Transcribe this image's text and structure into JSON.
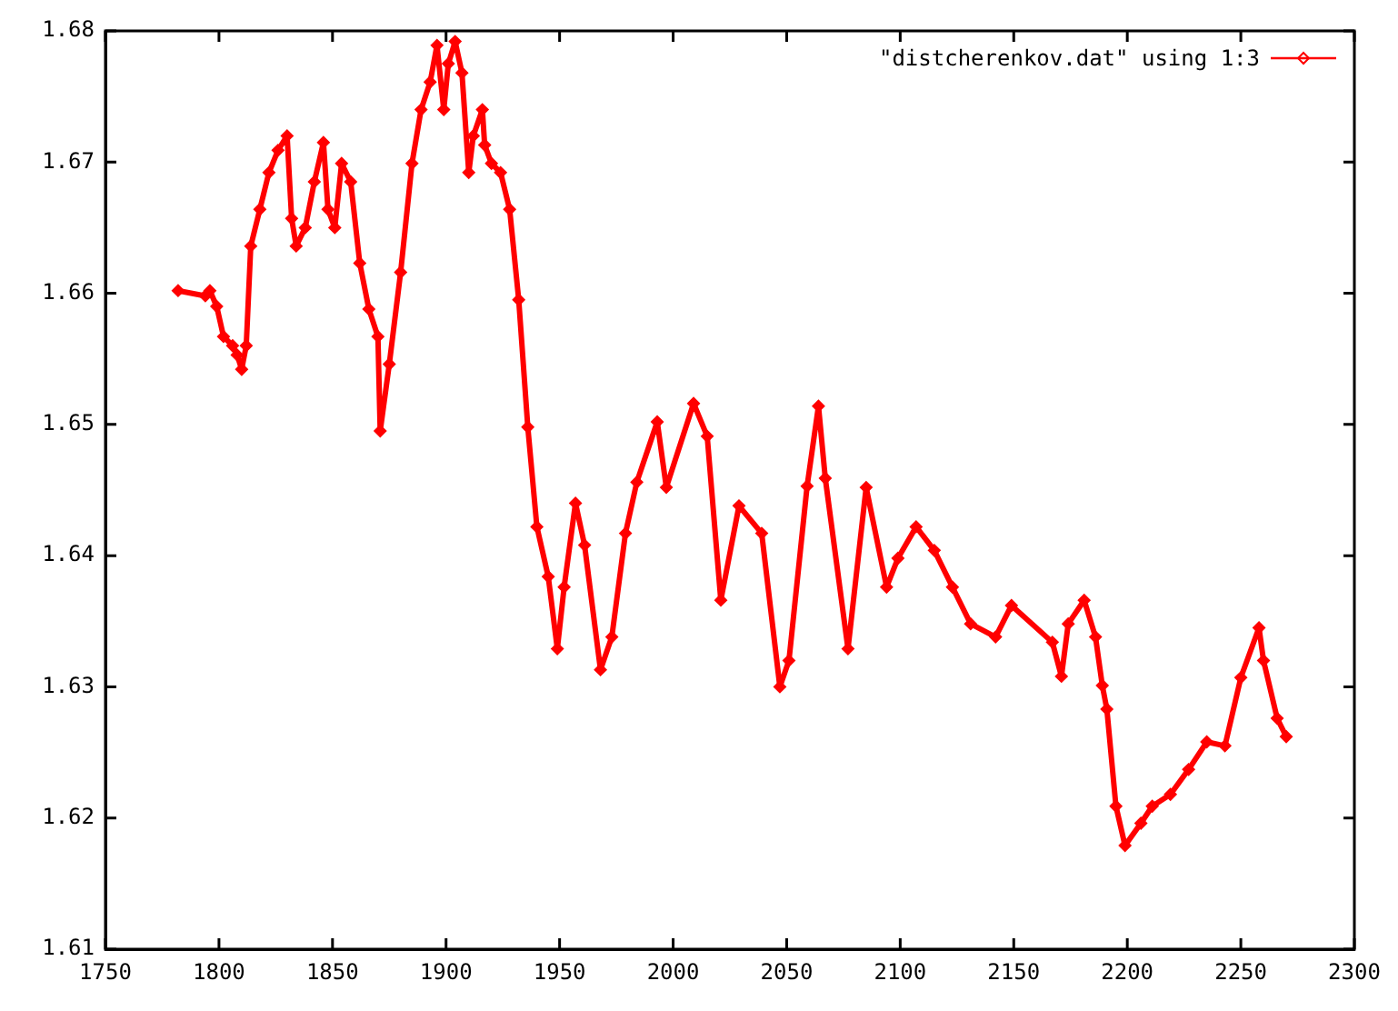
{
  "chart_data": {
    "type": "line",
    "x": [
      1782,
      1794,
      1796,
      1799,
      1802,
      1806,
      1808,
      1810,
      1812,
      1814,
      1818,
      1822,
      1826,
      1830,
      1832,
      1834,
      1838,
      1842,
      1846,
      1848,
      1851,
      1854,
      1858,
      1862,
      1866,
      1870,
      1871,
      1875,
      1880,
      1885,
      1889,
      1893,
      1896,
      1899,
      1901,
      1904,
      1907,
      1910,
      1912,
      1916,
      1917,
      1920,
      1924,
      1928,
      1932,
      1936,
      1940,
      1945,
      1949,
      1952,
      1957,
      1961,
      1968,
      1973,
      1979,
      1984,
      1993,
      1997,
      2009,
      2015,
      2021,
      2029,
      2039,
      2047,
      2051,
      2059,
      2064,
      2067,
      2077,
      2085,
      2094,
      2099,
      2107,
      2115,
      2123,
      2131,
      2142,
      2149,
      2167,
      2171,
      2174,
      2181,
      2186,
      2189,
      2191,
      2195,
      2199,
      2206,
      2211,
      2219,
      2227,
      2235,
      2243,
      2250,
      2258,
      2260,
      2266,
      2270
    ],
    "series": [
      {
        "name": "\"distcherenkov.dat\" using 1:3",
        "color": "#ff0000",
        "values": [
          1.6602,
          1.6598,
          1.6602,
          1.659,
          1.6567,
          1.656,
          1.6553,
          1.6542,
          1.656,
          1.6636,
          1.6664,
          1.6692,
          1.6709,
          1.672,
          1.6657,
          1.6636,
          1.665,
          1.6685,
          1.6715,
          1.6664,
          1.665,
          1.6699,
          1.6685,
          1.6623,
          1.6588,
          1.6567,
          1.6495,
          1.6546,
          1.6616,
          1.6699,
          1.674,
          1.6761,
          1.6789,
          1.674,
          1.6775,
          1.6792,
          1.6768,
          1.6692,
          1.672,
          1.674,
          1.6713,
          1.6699,
          1.6692,
          1.6664,
          1.6595,
          1.6498,
          1.6422,
          1.6384,
          1.6329,
          1.6376,
          1.644,
          1.6408,
          1.6313,
          1.6338,
          1.6417,
          1.6456,
          1.6502,
          1.6452,
          1.6516,
          1.6491,
          1.6366,
          1.6438,
          1.6417,
          1.63,
          1.632,
          1.6453,
          1.6514,
          1.6459,
          1.6329,
          1.6452,
          1.6376,
          1.6398,
          1.6422,
          1.6404,
          1.6376,
          1.6348,
          1.6338,
          1.6362,
          1.6334,
          1.6308,
          1.6348,
          1.6366,
          1.6338,
          1.6301,
          1.6283,
          1.6209,
          1.6179,
          1.6196,
          1.6209,
          1.6218,
          1.6237,
          1.6258,
          1.6255,
          1.6307,
          1.6345,
          1.632,
          1.6276,
          1.6262
        ]
      }
    ],
    "xlim": [
      1750,
      2300
    ],
    "xticks": [
      1750,
      1800,
      1850,
      1900,
      1950,
      2000,
      2050,
      2100,
      2150,
      2200,
      2250,
      2300
    ],
    "ylim": [
      1.61,
      1.68
    ],
    "yticks": [
      1.61,
      1.62,
      1.63,
      1.64,
      1.65,
      1.66,
      1.67,
      1.68
    ],
    "grid": false,
    "legend": "top right",
    "marker": "diamond",
    "line_style": "solid"
  }
}
